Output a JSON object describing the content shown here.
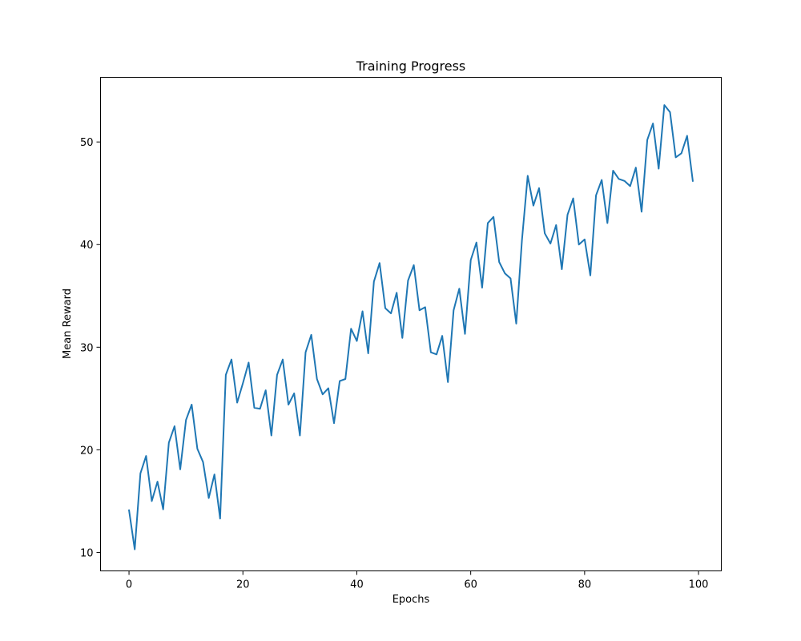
{
  "chart_data": {
    "type": "line",
    "title": "Training Progress",
    "xlabel": "Epochs",
    "ylabel": "Mean Reward",
    "xlim": [
      -5,
      104
    ],
    "ylim": [
      8.2,
      56.3
    ],
    "xticks": [
      0,
      20,
      40,
      60,
      80,
      100
    ],
    "yticks": [
      10,
      20,
      30,
      40,
      50
    ],
    "grid": false,
    "series_color": "#1f77b4",
    "series": [
      {
        "x": [
          0,
          1,
          2,
          3,
          4,
          5,
          6,
          7,
          8,
          9,
          10,
          11,
          12,
          13,
          14,
          15,
          16,
          17,
          18,
          19,
          20,
          21,
          22,
          23,
          24,
          25,
          26,
          27,
          28,
          29,
          30,
          31,
          32,
          33,
          34,
          35,
          36,
          37,
          38,
          39,
          40,
          41,
          42,
          43,
          44,
          45,
          46,
          47,
          48,
          49,
          50,
          51,
          52,
          53,
          54,
          55,
          56,
          57,
          58,
          59,
          60,
          61,
          62,
          63,
          64,
          65,
          66,
          67,
          68,
          69,
          70,
          71,
          72,
          73,
          74,
          75,
          76,
          77,
          78,
          79,
          80,
          81,
          82,
          83,
          84,
          85,
          86,
          87,
          88,
          89,
          90,
          91,
          92,
          93,
          94,
          95,
          96,
          97,
          98,
          99
        ],
        "values": [
          14.1,
          10.3,
          17.7,
          19.4,
          15.0,
          16.9,
          14.2,
          20.7,
          22.3,
          18.1,
          22.9,
          24.4,
          20.1,
          18.8,
          15.3,
          17.6,
          13.3,
          27.3,
          28.8,
          24.6,
          26.5,
          28.5,
          24.1,
          24.0,
          25.8,
          21.4,
          27.3,
          28.8,
          24.4,
          25.5,
          21.4,
          29.5,
          31.2,
          26.9,
          25.4,
          26.0,
          22.6,
          26.7,
          26.9,
          31.8,
          30.6,
          33.5,
          29.4,
          36.4,
          38.2,
          33.8,
          33.3,
          35.3,
          30.9,
          36.5,
          38.0,
          33.6,
          33.9,
          29.5,
          29.3,
          31.1,
          26.6,
          33.6,
          35.7,
          31.3,
          38.5,
          40.2,
          35.8,
          42.1,
          42.7,
          38.3,
          37.2,
          36.7,
          32.3,
          40.4,
          46.7,
          43.8,
          45.5,
          41.1,
          40.1,
          41.9,
          37.6,
          42.9,
          44.5,
          40.0,
          40.5,
          37.0,
          44.8,
          46.3,
          42.1,
          47.2,
          46.4,
          46.2,
          45.7,
          47.5,
          43.2,
          50.2,
          51.8,
          47.4,
          53.6,
          52.9,
          48.5,
          48.9,
          50.6,
          46.2
        ]
      }
    ]
  }
}
